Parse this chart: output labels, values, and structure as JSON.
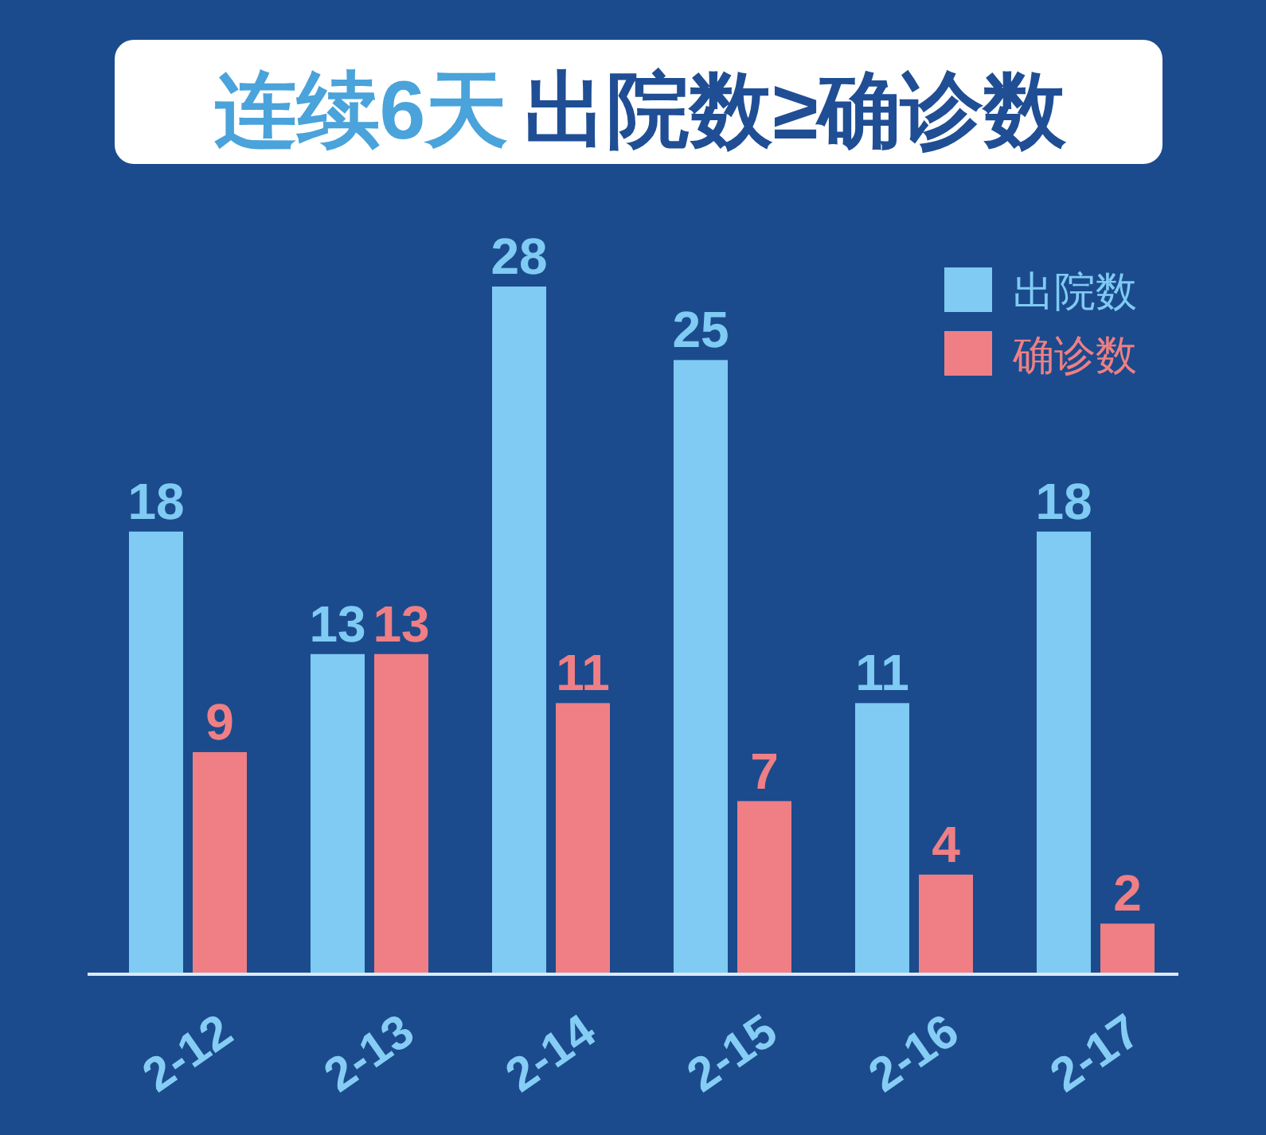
{
  "chart_data": {
    "type": "bar",
    "title": "连续6天出院数≥确诊数",
    "categories": [
      "2-12",
      "2-13",
      "2-14",
      "2-15",
      "2-16",
      "2-17"
    ],
    "series": [
      {
        "name": "出院数",
        "color": "#7fcbf3",
        "values": [
          18,
          13,
          28,
          25,
          11,
          18
        ]
      },
      {
        "name": "确诊数",
        "color": "#ef7f84",
        "values": [
          9,
          13,
          11,
          7,
          4,
          2
        ]
      }
    ],
    "data_labels": true,
    "legend": "top right",
    "grid": false,
    "tick_labels": "x"
  }
}
